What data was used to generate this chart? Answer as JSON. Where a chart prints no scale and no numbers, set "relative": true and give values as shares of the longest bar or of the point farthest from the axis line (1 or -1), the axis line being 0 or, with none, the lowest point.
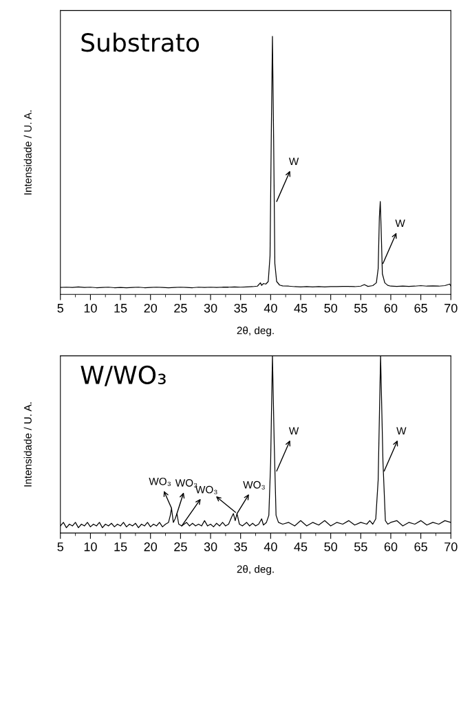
{
  "chart_data": [
    {
      "type": "line",
      "title": "Substrato",
      "xlabel": "2θ, deg.",
      "ylabel": "Intensidade / U. A.",
      "relative": true,
      "xlim": [
        5,
        70
      ],
      "xticks": [
        5,
        10,
        15,
        20,
        25,
        30,
        35,
        40,
        45,
        50,
        55,
        60,
        65,
        70
      ],
      "tick_labels": "x",
      "grid": false,
      "legend": false,
      "series": [
        {
          "color": "#000000",
          "x": [
            5,
            6,
            7,
            8,
            9,
            10,
            11,
            12,
            13,
            14,
            15,
            16,
            17,
            18,
            19,
            20,
            21,
            22,
            23,
            24,
            25,
            26,
            27,
            28,
            29,
            30,
            31,
            32,
            33,
            34,
            35,
            36,
            37,
            37.8,
            38.3,
            38.5,
            38.8,
            39.2,
            39.6,
            39.9,
            40.1,
            40.3,
            40.5,
            40.7,
            41.0,
            41.5,
            42,
            43,
            44,
            45,
            46,
            47,
            48,
            49,
            50,
            51,
            52,
            53,
            54,
            55,
            55.6,
            56.2,
            57,
            57.6,
            57.9,
            58.1,
            58.25,
            58.4,
            58.6,
            59,
            59.5,
            60,
            61,
            62,
            63,
            64,
            65,
            66,
            67,
            68,
            69,
            69.8,
            70
          ],
          "values": [
            0.027,
            0.028,
            0.027,
            0.029,
            0.027,
            0.028,
            0.026,
            0.027,
            0.028,
            0.026,
            0.027,
            0.026,
            0.027,
            0.028,
            0.026,
            0.027,
            0.028,
            0.027,
            0.026,
            0.027,
            0.028,
            0.027,
            0.026,
            0.028,
            0.027,
            0.028,
            0.027,
            0.028,
            0.028,
            0.029,
            0.028,
            0.029,
            0.03,
            0.032,
            0.045,
            0.035,
            0.042,
            0.04,
            0.05,
            0.15,
            0.6,
            1,
            0.6,
            0.12,
            0.05,
            0.036,
            0.033,
            0.032,
            0.03,
            0.029,
            0.03,
            0.029,
            0.03,
            0.029,
            0.03,
            0.03,
            0.031,
            0.031,
            0.03,
            0.032,
            0.038,
            0.031,
            0.034,
            0.045,
            0.1,
            0.3,
            0.36,
            0.25,
            0.08,
            0.045,
            0.035,
            0.032,
            0.031,
            0.032,
            0.031,
            0.032,
            0.034,
            0.032,
            0.033,
            0.032,
            0.034,
            0.04,
            0.033
          ]
        }
      ],
      "annotations": [
        {
          "text": "W",
          "x": 41,
          "y": 0.36
        },
        {
          "text": "W",
          "x": 58.7,
          "y": 0.12
        }
      ]
    },
    {
      "type": "line",
      "title": "W/WO₃",
      "xlabel": "2θ, deg.",
      "ylabel": "Intensidade / U. A.",
      "relative": true,
      "xlim": [
        5,
        70
      ],
      "xticks": [
        5,
        10,
        15,
        20,
        25,
        30,
        35,
        40,
        45,
        50,
        55,
        60,
        65,
        70
      ],
      "tick_labels": "x",
      "grid": false,
      "legend": false,
      "series": [
        {
          "color": "#000000",
          "x": [
            5,
            5.5,
            6,
            6.5,
            7,
            7.5,
            8,
            8.5,
            9,
            9.5,
            10,
            10.5,
            11,
            11.5,
            12,
            12.5,
            13,
            13.5,
            14,
            14.5,
            15,
            15.5,
            16,
            16.5,
            17,
            17.5,
            18,
            18.5,
            19,
            19.5,
            20,
            20.5,
            21,
            21.5,
            22,
            22.5,
            23,
            23.3,
            23.5,
            23.8,
            24.1,
            24.4,
            24.7,
            25.2,
            26,
            26.5,
            27,
            27.5,
            28,
            28.5,
            29,
            29.5,
            30,
            30.5,
            31,
            31.5,
            32,
            32.5,
            33,
            33.5,
            33.8,
            34.1,
            34.4,
            34.8,
            35.3,
            36,
            36.5,
            37,
            37.5,
            38,
            38.5,
            38.8,
            39.3,
            39.7,
            40.0,
            40.3,
            40.6,
            40.9,
            41.3,
            42,
            43,
            44,
            45,
            46,
            47,
            48,
            49,
            50,
            51,
            52,
            53,
            54,
            55,
            56,
            56.5,
            57,
            57.5,
            57.9,
            58.3,
            58.7,
            59.1,
            59.5,
            60,
            61,
            62,
            63,
            64,
            65,
            66,
            67,
            68,
            69,
            70
          ],
          "values": [
            0.04,
            0.06,
            0.03,
            0.05,
            0.04,
            0.06,
            0.03,
            0.05,
            0.04,
            0.06,
            0.035,
            0.05,
            0.04,
            0.06,
            0.03,
            0.05,
            0.04,
            0.055,
            0.035,
            0.05,
            0.04,
            0.06,
            0.035,
            0.05,
            0.04,
            0.055,
            0.03,
            0.05,
            0.04,
            0.06,
            0.035,
            0.05,
            0.04,
            0.06,
            0.035,
            0.05,
            0.06,
            0.1,
            0.14,
            0.06,
            0.08,
            0.11,
            0.05,
            0.04,
            0.06,
            0.04,
            0.055,
            0.04,
            0.05,
            0.04,
            0.07,
            0.04,
            0.05,
            0.035,
            0.055,
            0.04,
            0.06,
            0.04,
            0.05,
            0.09,
            0.11,
            0.07,
            0.11,
            0.05,
            0.04,
            0.06,
            0.04,
            0.055,
            0.04,
            0.05,
            0.08,
            0.045,
            0.06,
            0.1,
            0.4,
            1,
            0.5,
            0.1,
            0.06,
            0.05,
            0.06,
            0.04,
            0.07,
            0.04,
            0.06,
            0.045,
            0.07,
            0.04,
            0.06,
            0.05,
            0.07,
            0.045,
            0.06,
            0.05,
            0.07,
            0.05,
            0.08,
            0.3,
            1,
            0.4,
            0.07,
            0.05,
            0.06,
            0.07,
            0.04,
            0.06,
            0.05,
            0.07,
            0.045,
            0.06,
            0.05,
            0.07,
            0.06
          ]
        }
      ],
      "annotations": [
        {
          "text": "W",
          "x": 41,
          "y": 0.35
        },
        {
          "text": "W",
          "x": 58.9,
          "y": 0.35
        },
        {
          "text": "WO₃",
          "x": 23.5,
          "y": 0.14
        },
        {
          "text": "WO₃",
          "x": 24.4,
          "y": 0.11
        },
        {
          "text": "WO₃",
          "x": 25.2,
          "y": 0.04
        },
        {
          "text": "WO₃",
          "x": 34.4,
          "y": 0.11
        }
      ]
    }
  ]
}
